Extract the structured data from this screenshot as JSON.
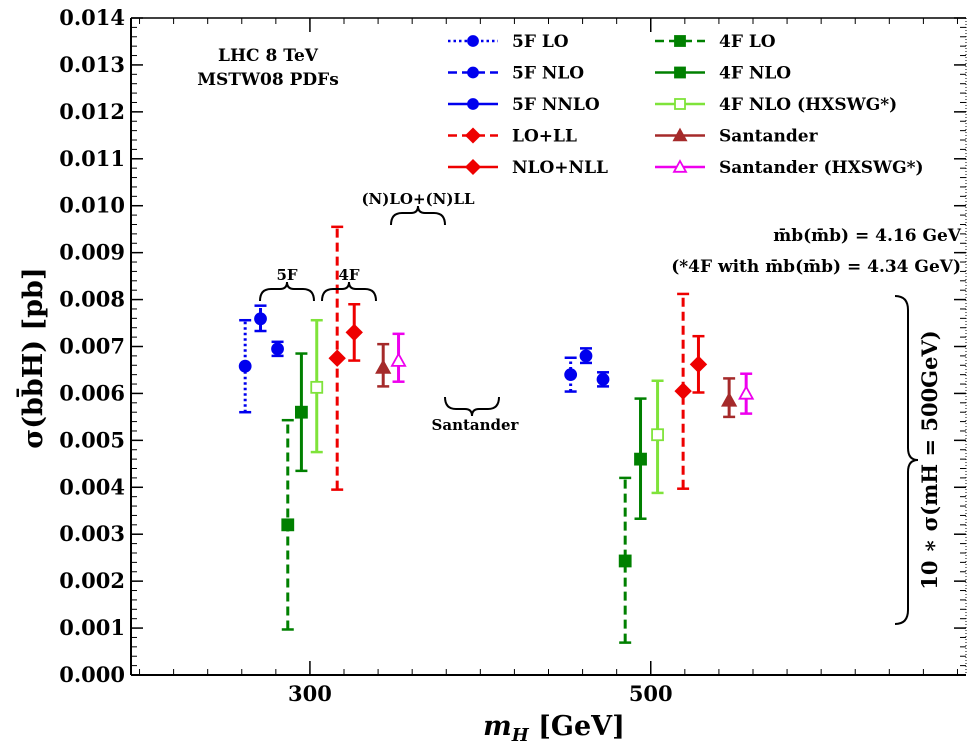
{
  "chart_data": {
    "type": "scatter",
    "title": "",
    "xlabel_main": "m",
    "xlabel_sub": "H",
    "xlabel_unit": " [GeV]",
    "ylabel": "σ(bb̄H) [pb]",
    "xlim": [
      195,
      685
    ],
    "ylim": [
      0,
      0.014
    ],
    "x_ticks": [
      {
        "value": 300,
        "label": "300"
      },
      {
        "value": 500,
        "label": "500"
      }
    ],
    "y_ticks": [
      {
        "value": 0.0,
        "label": "0.000"
      },
      {
        "value": 0.001,
        "label": "0.001"
      },
      {
        "value": 0.002,
        "label": "0.002"
      },
      {
        "value": 0.003,
        "label": "0.003"
      },
      {
        "value": 0.004,
        "label": "0.004"
      },
      {
        "value": 0.005,
        "label": "0.005"
      },
      {
        "value": 0.006,
        "label": "0.006"
      },
      {
        "value": 0.007,
        "label": "0.007"
      },
      {
        "value": 0.008,
        "label": "0.008"
      },
      {
        "value": 0.009,
        "label": "0.009"
      },
      {
        "value": 0.01,
        "label": "0.010"
      },
      {
        "value": 0.011,
        "label": "0.011"
      },
      {
        "value": 0.012,
        "label": "0.012"
      },
      {
        "value": 0.013,
        "label": "0.013"
      },
      {
        "value": 0.014,
        "label": "0.014"
      }
    ],
    "grid": false,
    "legend_position": "top-right",
    "series": [
      {
        "name": "5F LO",
        "color": "#0000ee",
        "marker": "circle",
        "dash": "dotted",
        "filled": true,
        "points": [
          {
            "x": 262,
            "y": 0.00658,
            "lo": 0.0056,
            "hi": 0.00756
          },
          {
            "x": 453,
            "y": 0.0064,
            "lo": 0.00604,
            "hi": 0.00676
          }
        ]
      },
      {
        "name": "5F NLO",
        "color": "#0000ee",
        "marker": "circle",
        "dash": "dashed",
        "filled": true,
        "points": [
          {
            "x": 271,
            "y": 0.00759,
            "lo": 0.00733,
            "hi": 0.00787
          },
          {
            "x": 462,
            "y": 0.0068,
            "lo": 0.00665,
            "hi": 0.00696
          }
        ]
      },
      {
        "name": "5F NNLO",
        "color": "#0000ee",
        "marker": "circle",
        "dash": "solid",
        "filled": true,
        "points": [
          {
            "x": 281,
            "y": 0.00695,
            "lo": 0.0068,
            "hi": 0.0071
          },
          {
            "x": 472,
            "y": 0.0063,
            "lo": 0.00615,
            "hi": 0.00645
          }
        ]
      },
      {
        "name": "LO+LL",
        "color": "#ee0000",
        "marker": "diamond",
        "dash": "dashed",
        "filled": true,
        "points": [
          {
            "x": 316,
            "y": 0.00675,
            "lo": 0.00395,
            "hi": 0.00955
          },
          {
            "x": 519,
            "y": 0.00605,
            "lo": 0.00397,
            "hi": 0.00812
          }
        ]
      },
      {
        "name": "NLO+NLL",
        "color": "#ee0000",
        "marker": "diamond",
        "dash": "solid",
        "filled": true,
        "points": [
          {
            "x": 326,
            "y": 0.0073,
            "lo": 0.0067,
            "hi": 0.0079
          },
          {
            "x": 528,
            "y": 0.00662,
            "lo": 0.00602,
            "hi": 0.00722
          }
        ]
      },
      {
        "name": "4F LO",
        "color": "#008000",
        "marker": "square",
        "dash": "dashed",
        "filled": true,
        "points": [
          {
            "x": 287,
            "y": 0.0032,
            "lo": 0.00097,
            "hi": 0.00543
          },
          {
            "x": 485,
            "y": 0.00243,
            "lo": 0.00069,
            "hi": 0.0042
          }
        ]
      },
      {
        "name": "4F NLO",
        "color": "#008000",
        "marker": "square",
        "dash": "solid",
        "filled": true,
        "points": [
          {
            "x": 295,
            "y": 0.0056,
            "lo": 0.00435,
            "hi": 0.00685
          },
          {
            "x": 494,
            "y": 0.0046,
            "lo": 0.00333,
            "hi": 0.00589
          }
        ]
      },
      {
        "name": "4F NLO (HXSWG*)",
        "color": "#7fe33a",
        "marker": "square",
        "dash": "solid",
        "filled": false,
        "points": [
          {
            "x": 304,
            "y": 0.00613,
            "lo": 0.00475,
            "hi": 0.00756
          },
          {
            "x": 504,
            "y": 0.00512,
            "lo": 0.00388,
            "hi": 0.00627
          }
        ]
      },
      {
        "name": "Santander",
        "color": "#a52a2a",
        "marker": "triangle",
        "dash": "solid",
        "filled": true,
        "points": [
          {
            "x": 343,
            "y": 0.00655,
            "lo": 0.00615,
            "hi": 0.00705
          },
          {
            "x": 546,
            "y": 0.00585,
            "lo": 0.0055,
            "hi": 0.00632
          }
        ]
      },
      {
        "name": "Santander (HXSWG*)",
        "color": "#ee00ee",
        "marker": "triangle",
        "dash": "solid",
        "filled": false,
        "points": [
          {
            "x": 352,
            "y": 0.0067,
            "lo": 0.00625,
            "hi": 0.00727
          },
          {
            "x": 556,
            "y": 0.006,
            "lo": 0.00557,
            "hi": 0.00642
          }
        ]
      }
    ],
    "annotations": {
      "lhc_line1": "LHC 8 TeV",
      "lhc_line2": "MSTW08 PDFs",
      "mass_line1": "m̄b(m̄b) = 4.16 GeV",
      "mass_line2": "(*4F with m̄b(m̄b) = 4.34 GeV)",
      "brace_5f": "5F",
      "brace_4f": "4F",
      "brace_nlo": "(N)LO+(N)LL",
      "brace_santander": "Santander",
      "brace_right": "10 ∗ σ(mH = 500GeV)"
    }
  }
}
